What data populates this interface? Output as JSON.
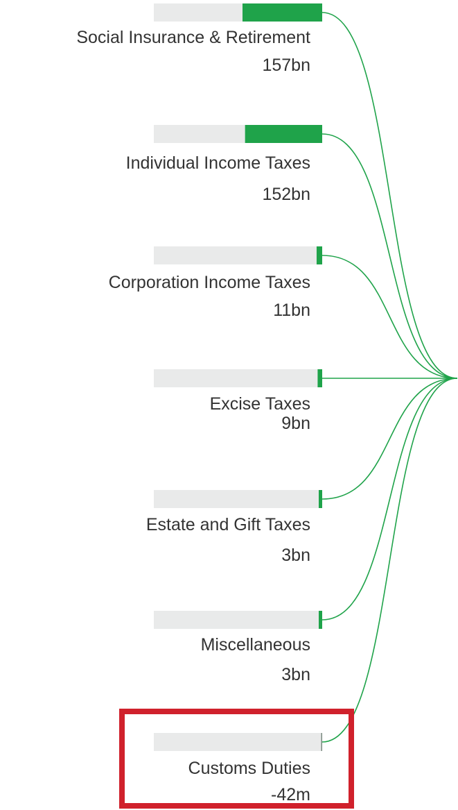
{
  "chart_data": {
    "type": "bar",
    "title": "",
    "categories": [
      "Social Insurance & Retirement",
      "Individual Income Taxes",
      "Corporation Income Taxes",
      "Excise Taxes",
      "Estate and Gift Taxes",
      "Miscellaneous",
      "Customs Duties"
    ],
    "values": [
      157,
      152,
      11,
      9,
      3,
      3,
      -0.042
    ],
    "value_unit": "bn",
    "value_labels": [
      "157bn",
      "152bn",
      "11bn",
      "9bn",
      "3bn",
      "3bn",
      "-42m"
    ],
    "legend": "none",
    "grid": false,
    "connector_flow": "all bars connect by curved lines to a shared node on the right edge"
  },
  "colors": {
    "bar_fill": "#1fa34a",
    "bar_track": "#e9eaea",
    "connector_line": "#1fa34a",
    "highlight_box": "#d0212c",
    "text": "#333333"
  },
  "highlight": {
    "category": "Customs Duties"
  }
}
